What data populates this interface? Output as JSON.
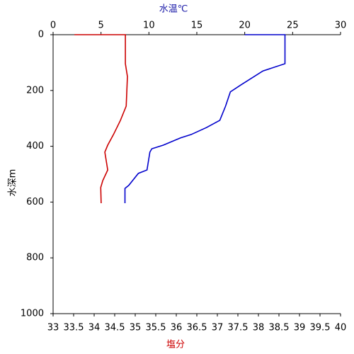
{
  "chart_data": {
    "type": "line",
    "ylabel": "水深m",
    "ylim": [
      0,
      1000
    ],
    "y_inverted": true,
    "yticks": [
      0,
      200,
      400,
      600,
      800,
      1000
    ],
    "x2label": "水温℃",
    "x2label_color": "#1a1aa8",
    "x2lim": [
      0,
      30
    ],
    "x2ticks": [
      0,
      5,
      10,
      15,
      20,
      25,
      30
    ],
    "xlabel": "塩分",
    "xlabel_color": "#cc0000",
    "xlim": [
      33,
      40
    ],
    "xticks": [
      33,
      33.5,
      34,
      34.5,
      35,
      35.5,
      36,
      36.5,
      37,
      37.5,
      38,
      38.5,
      39,
      39.5,
      40
    ],
    "series": [
      {
        "color": "#0000cc",
        "axis": "x2",
        "x": [
          20,
          24.2,
          24.2,
          21.9,
          19.6,
          18.5,
          18.0,
          17.4,
          16.0,
          14.4,
          13.3,
          11.5,
          10.3,
          10.1,
          9.8,
          8.9,
          7.9,
          7.5,
          7.5
        ],
        "y": [
          0,
          0,
          104,
          130,
          180,
          205,
          256,
          307,
          333,
          358,
          370,
          396,
          409,
          421,
          485,
          497,
          540,
          551,
          604
        ]
      },
      {
        "color": "#cc0000",
        "axis": "x",
        "x": [
          33.52,
          34.76,
          34.76,
          34.81,
          34.78,
          34.64,
          34.47,
          34.33,
          34.26,
          34.33,
          34.21,
          34.16,
          34.17
        ],
        "y": [
          0,
          0,
          104,
          150,
          256,
          307,
          358,
          396,
          421,
          485,
          523,
          548,
          604
        ]
      }
    ]
  }
}
